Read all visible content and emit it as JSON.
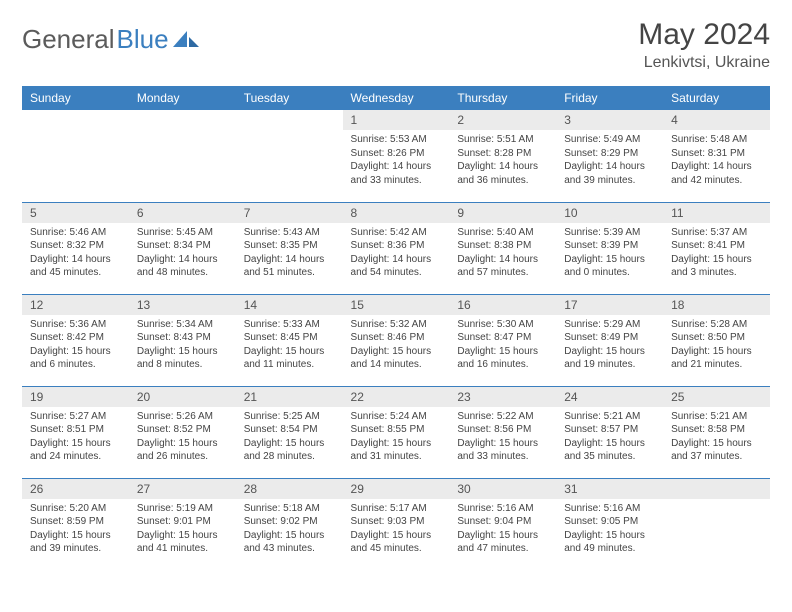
{
  "brand": {
    "part1": "General",
    "part2": "Blue"
  },
  "title": "May 2024",
  "location": "Lenkivtsi, Ukraine",
  "colors": {
    "header_bg": "#3b7fbf",
    "header_text": "#ffffff",
    "daynum_bg": "#ebebeb",
    "row_border": "#3b7fbf",
    "body_text": "#444444",
    "page_bg": "#ffffff"
  },
  "weekdays": [
    "Sunday",
    "Monday",
    "Tuesday",
    "Wednesday",
    "Thursday",
    "Friday",
    "Saturday"
  ],
  "weeks": [
    [
      null,
      null,
      null,
      {
        "n": "1",
        "sr": "5:53 AM",
        "ss": "8:26 PM",
        "dl": "14 hours and 33 minutes."
      },
      {
        "n": "2",
        "sr": "5:51 AM",
        "ss": "8:28 PM",
        "dl": "14 hours and 36 minutes."
      },
      {
        "n": "3",
        "sr": "5:49 AM",
        "ss": "8:29 PM",
        "dl": "14 hours and 39 minutes."
      },
      {
        "n": "4",
        "sr": "5:48 AM",
        "ss": "8:31 PM",
        "dl": "14 hours and 42 minutes."
      }
    ],
    [
      {
        "n": "5",
        "sr": "5:46 AM",
        "ss": "8:32 PM",
        "dl": "14 hours and 45 minutes."
      },
      {
        "n": "6",
        "sr": "5:45 AM",
        "ss": "8:34 PM",
        "dl": "14 hours and 48 minutes."
      },
      {
        "n": "7",
        "sr": "5:43 AM",
        "ss": "8:35 PM",
        "dl": "14 hours and 51 minutes."
      },
      {
        "n": "8",
        "sr": "5:42 AM",
        "ss": "8:36 PM",
        "dl": "14 hours and 54 minutes."
      },
      {
        "n": "9",
        "sr": "5:40 AM",
        "ss": "8:38 PM",
        "dl": "14 hours and 57 minutes."
      },
      {
        "n": "10",
        "sr": "5:39 AM",
        "ss": "8:39 PM",
        "dl": "15 hours and 0 minutes."
      },
      {
        "n": "11",
        "sr": "5:37 AM",
        "ss": "8:41 PM",
        "dl": "15 hours and 3 minutes."
      }
    ],
    [
      {
        "n": "12",
        "sr": "5:36 AM",
        "ss": "8:42 PM",
        "dl": "15 hours and 6 minutes."
      },
      {
        "n": "13",
        "sr": "5:34 AM",
        "ss": "8:43 PM",
        "dl": "15 hours and 8 minutes."
      },
      {
        "n": "14",
        "sr": "5:33 AM",
        "ss": "8:45 PM",
        "dl": "15 hours and 11 minutes."
      },
      {
        "n": "15",
        "sr": "5:32 AM",
        "ss": "8:46 PM",
        "dl": "15 hours and 14 minutes."
      },
      {
        "n": "16",
        "sr": "5:30 AM",
        "ss": "8:47 PM",
        "dl": "15 hours and 16 minutes."
      },
      {
        "n": "17",
        "sr": "5:29 AM",
        "ss": "8:49 PM",
        "dl": "15 hours and 19 minutes."
      },
      {
        "n": "18",
        "sr": "5:28 AM",
        "ss": "8:50 PM",
        "dl": "15 hours and 21 minutes."
      }
    ],
    [
      {
        "n": "19",
        "sr": "5:27 AM",
        "ss": "8:51 PM",
        "dl": "15 hours and 24 minutes."
      },
      {
        "n": "20",
        "sr": "5:26 AM",
        "ss": "8:52 PM",
        "dl": "15 hours and 26 minutes."
      },
      {
        "n": "21",
        "sr": "5:25 AM",
        "ss": "8:54 PM",
        "dl": "15 hours and 28 minutes."
      },
      {
        "n": "22",
        "sr": "5:24 AM",
        "ss": "8:55 PM",
        "dl": "15 hours and 31 minutes."
      },
      {
        "n": "23",
        "sr": "5:22 AM",
        "ss": "8:56 PM",
        "dl": "15 hours and 33 minutes."
      },
      {
        "n": "24",
        "sr": "5:21 AM",
        "ss": "8:57 PM",
        "dl": "15 hours and 35 minutes."
      },
      {
        "n": "25",
        "sr": "5:21 AM",
        "ss": "8:58 PM",
        "dl": "15 hours and 37 minutes."
      }
    ],
    [
      {
        "n": "26",
        "sr": "5:20 AM",
        "ss": "8:59 PM",
        "dl": "15 hours and 39 minutes."
      },
      {
        "n": "27",
        "sr": "5:19 AM",
        "ss": "9:01 PM",
        "dl": "15 hours and 41 minutes."
      },
      {
        "n": "28",
        "sr": "5:18 AM",
        "ss": "9:02 PM",
        "dl": "15 hours and 43 minutes."
      },
      {
        "n": "29",
        "sr": "5:17 AM",
        "ss": "9:03 PM",
        "dl": "15 hours and 45 minutes."
      },
      {
        "n": "30",
        "sr": "5:16 AM",
        "ss": "9:04 PM",
        "dl": "15 hours and 47 minutes."
      },
      {
        "n": "31",
        "sr": "5:16 AM",
        "ss": "9:05 PM",
        "dl": "15 hours and 49 minutes."
      },
      null
    ]
  ],
  "labels": {
    "sunrise": "Sunrise:",
    "sunset": "Sunset:",
    "daylight": "Daylight:"
  }
}
